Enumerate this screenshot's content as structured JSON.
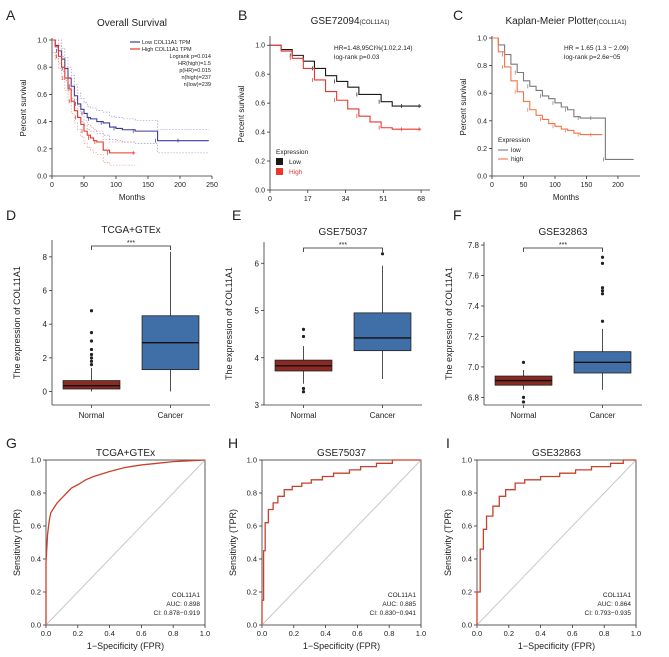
{
  "colors": {
    "blue_curve": "#3b3b9a",
    "red_curve": "#e8372c",
    "black_curve": "#1a1a1a",
    "gray_curve": "#7a7a7a",
    "orange_curve": "#f5734a",
    "normal_box": "#8a2a22",
    "cancer_box": "#3f6fa6",
    "roc_line": "#c8412c",
    "diag": "#c8c8c8"
  },
  "chart_data": [
    {
      "panel": "A",
      "type": "line",
      "title": "Overall Survival",
      "xlabel": "Months",
      "ylabel": "Percent survival",
      "xlim": [
        0,
        250
      ],
      "ylim": [
        0,
        1
      ],
      "xticks": [
        0,
        50,
        100,
        150,
        200,
        250
      ],
      "xticklabels": [
        "0",
        "50",
        "100",
        "150",
        "200",
        "250"
      ],
      "yticks": [
        0,
        0.2,
        0.4,
        0.6,
        0.8,
        1
      ],
      "yticklabels": [
        "0.0",
        "0.2",
        "0.4",
        "0.6",
        "0.8",
        "1.0"
      ],
      "legend": [
        "Low COL11A1 TPM",
        "High COL11A1 TPM"
      ],
      "stats": [
        "Logrank p=0.014",
        "HR(high)=1.5",
        "p(HR)=0.015",
        "n(high)=237",
        "n(low)=239"
      ],
      "series": [
        {
          "name": "Low",
          "color_key": "blue_curve",
          "x": [
            0,
            5,
            10,
            15,
            20,
            25,
            30,
            35,
            40,
            45,
            50,
            55,
            60,
            70,
            80,
            90,
            100,
            110,
            130,
            150,
            165,
            175,
            200,
            245
          ],
          "y": [
            1,
            0.96,
            0.92,
            0.86,
            0.79,
            0.72,
            0.66,
            0.59,
            0.53,
            0.49,
            0.46,
            0.43,
            0.42,
            0.4,
            0.39,
            0.36,
            0.35,
            0.34,
            0.33,
            0.33,
            0.26,
            0.26,
            0.26,
            0.26
          ]
        },
        {
          "name": "High",
          "color_key": "red_curve",
          "x": [
            0,
            5,
            10,
            15,
            20,
            25,
            30,
            35,
            40,
            45,
            50,
            55,
            60,
            65,
            70,
            80,
            90,
            100,
            130
          ],
          "y": [
            1,
            0.95,
            0.88,
            0.8,
            0.72,
            0.64,
            0.55,
            0.48,
            0.43,
            0.38,
            0.33,
            0.3,
            0.28,
            0.26,
            0.25,
            0.19,
            0.17,
            0.17,
            0.17
          ]
        }
      ]
    },
    {
      "panel": "B",
      "type": "line",
      "title": "GSE72094",
      "title_sub": "(COL11A1)",
      "xlabel": "",
      "ylabel": "Percent survival",
      "xlim": [
        0,
        72
      ],
      "ylim": [
        0,
        1.05
      ],
      "xticks": [
        0,
        17,
        34,
        51,
        68
      ],
      "xticklabels": [
        "0",
        "17",
        "34",
        "51",
        "68"
      ],
      "yticks": [
        0,
        0.2,
        0.4,
        0.6,
        0.8,
        1.0
      ],
      "yticklabels": [
        "0.0",
        "0.2",
        "0.4",
        "0.6",
        "0.8",
        "1.0"
      ],
      "legend_title": "Expression",
      "legend": [
        "Low",
        "High"
      ],
      "stats": [
        "HR=1.48,95CI%(1.02,2.14)",
        "log-rank p=0.03"
      ],
      "series": [
        {
          "name": "Low",
          "color_key": "black_curve",
          "x": [
            0,
            5,
            10,
            15,
            20,
            25,
            30,
            35,
            40,
            45,
            50,
            55,
            60,
            65,
            68
          ],
          "y": [
            1,
            0.97,
            0.93,
            0.89,
            0.84,
            0.79,
            0.75,
            0.71,
            0.66,
            0.66,
            0.61,
            0.58,
            0.58,
            0.58,
            0.58
          ]
        },
        {
          "name": "High",
          "color_key": "red_curve",
          "x": [
            0,
            5,
            10,
            15,
            20,
            25,
            30,
            35,
            40,
            45,
            50,
            55,
            60,
            65,
            68
          ],
          "y": [
            1,
            0.96,
            0.91,
            0.84,
            0.76,
            0.68,
            0.62,
            0.56,
            0.51,
            0.47,
            0.43,
            0.42,
            0.42,
            0.42,
            0.42
          ]
        }
      ]
    },
    {
      "panel": "C",
      "type": "line",
      "title": "Kaplan-Meier Plotter",
      "title_sub": "(COL11A1)",
      "xlabel": "Months",
      "ylabel": "Percent survival",
      "xlim": [
        0,
        235
      ],
      "ylim": [
        0,
        1
      ],
      "xticks": [
        0,
        50,
        100,
        150,
        200
      ],
      "xticklabels": [
        "0",
        "50",
        "100",
        "150",
        "200"
      ],
      "yticks": [
        0,
        0.2,
        0.4,
        0.6,
        0.8,
        1
      ],
      "yticklabels": [
        "0.0",
        "0.2",
        "0.4",
        "0.6",
        "0.8",
        "1.0"
      ],
      "legend_title": "Expression",
      "legend": [
        "low",
        "high"
      ],
      "stats": [
        "HR = 1.65 (1.3 − 2.09)",
        "log-rank p=2.6e−05"
      ],
      "series": [
        {
          "name": "low",
          "color_key": "gray_curve",
          "x": [
            0,
            10,
            20,
            30,
            40,
            50,
            60,
            70,
            80,
            90,
            100,
            110,
            120,
            130,
            140,
            150,
            160,
            175,
            180,
            225
          ],
          "y": [
            1,
            0.95,
            0.88,
            0.81,
            0.75,
            0.69,
            0.65,
            0.62,
            0.58,
            0.56,
            0.53,
            0.5,
            0.48,
            0.43,
            0.42,
            0.42,
            0.42,
            0.42,
            0.12,
            0.12
          ]
        },
        {
          "name": "high",
          "color_key": "orange_curve",
          "x": [
            0,
            10,
            20,
            30,
            40,
            50,
            60,
            70,
            80,
            90,
            100,
            110,
            120,
            130,
            140,
            150,
            160,
            175
          ],
          "y": [
            1,
            0.9,
            0.79,
            0.69,
            0.61,
            0.54,
            0.48,
            0.44,
            0.41,
            0.38,
            0.36,
            0.34,
            0.33,
            0.31,
            0.3,
            0.3,
            0.3,
            0.3
          ]
        }
      ]
    },
    {
      "panel": "D",
      "type": "box",
      "title": "TCGA+GTEx",
      "ylabel": "The expression of COL11A1",
      "categories": [
        "Normal",
        "Cancer"
      ],
      "significance": "***",
      "ylim": [
        -0.8,
        9
      ],
      "yticks": [
        0,
        2,
        4,
        6,
        8
      ],
      "yticklabels": [
        "0",
        "2",
        "4",
        "6",
        "8"
      ],
      "boxes": [
        {
          "min": 0.0,
          "q1": 0.15,
          "median": 0.35,
          "q3": 0.65,
          "max": 1.4,
          "outliers": [
            1.6,
            1.8,
            2.0,
            2.2,
            2.5,
            3.0,
            3.5,
            4.8
          ]
        },
        {
          "min": 0.0,
          "q1": 1.3,
          "median": 2.9,
          "q3": 4.5,
          "max": 8.3,
          "outliers": []
        }
      ]
    },
    {
      "panel": "E",
      "type": "box",
      "title": "GSE75037",
      "ylabel": "The expression of COL11A1",
      "categories": [
        "Normal",
        "Cancer"
      ],
      "significance": "***",
      "ylim": [
        3,
        6.45
      ],
      "yticks": [
        3,
        4,
        5,
        6
      ],
      "yticklabels": [
        "3",
        "4",
        "5",
        "6"
      ],
      "boxes": [
        {
          "min": 3.45,
          "q1": 3.72,
          "median": 3.83,
          "q3": 3.95,
          "max": 4.25,
          "outliers": [
            4.6,
            4.45,
            3.35,
            3.28
          ]
        },
        {
          "min": 3.55,
          "q1": 4.15,
          "median": 4.42,
          "q3": 4.95,
          "max": 5.95,
          "outliers": [
            6.2
          ]
        }
      ]
    },
    {
      "panel": "F",
      "type": "box",
      "title": "GSE32863",
      "ylabel": "The expression of COL11A1",
      "categories": [
        "Normal",
        "Cancer"
      ],
      "significance": "***",
      "ylim": [
        6.75,
        7.82
      ],
      "yticks": [
        6.8,
        7.0,
        7.2,
        7.4,
        7.6,
        7.8
      ],
      "yticklabels": [
        "6.8",
        "7.0",
        "7.2",
        "7.4",
        "7.6",
        "7.8"
      ],
      "boxes": [
        {
          "min": 6.85,
          "q1": 6.88,
          "median": 6.91,
          "q3": 6.94,
          "max": 6.98,
          "outliers": [
            7.03,
            6.8,
            6.77
          ]
        },
        {
          "min": 6.85,
          "q1": 6.96,
          "median": 7.03,
          "q3": 7.1,
          "max": 7.25,
          "outliers": [
            7.3,
            7.48,
            7.5,
            7.52,
            7.68,
            7.72
          ]
        }
      ]
    },
    {
      "panel": "G",
      "type": "line",
      "subtype": "roc",
      "title": "TCGA+GTEx",
      "xlabel": "1−Specificity (FPR)",
      "ylabel": "Sensitivity (TPR)",
      "xlim": [
        0,
        1
      ],
      "ylim": [
        0,
        1
      ],
      "xticks": [
        0,
        0.2,
        0.4,
        0.6,
        0.8,
        1.0
      ],
      "xticklabels": [
        "0.0",
        "0.2",
        "0.4",
        "0.6",
        "0.8",
        "1.0"
      ],
      "yticks": [
        0,
        0.2,
        0.4,
        0.6,
        0.8,
        1.0
      ],
      "yticklabels": [
        "0.0",
        "0.2",
        "0.4",
        "0.6",
        "0.8",
        "1.0"
      ],
      "annotation": [
        "COL11A1",
        "AUC: 0.898",
        "CI: 0.878−0.919"
      ],
      "x": [
        0,
        0,
        0.01,
        0.02,
        0.03,
        0.05,
        0.07,
        0.1,
        0.13,
        0.16,
        0.2,
        0.25,
        0.3,
        0.4,
        0.5,
        0.6,
        0.7,
        0.8,
        0.9,
        1.0
      ],
      "y": [
        0,
        0.38,
        0.55,
        0.63,
        0.68,
        0.71,
        0.74,
        0.77,
        0.8,
        0.83,
        0.85,
        0.88,
        0.9,
        0.93,
        0.955,
        0.97,
        0.98,
        0.99,
        0.995,
        1.0
      ]
    },
    {
      "panel": "H",
      "type": "line",
      "subtype": "roc",
      "title": "GSE75037",
      "xlabel": "1−Specificity (FPR)",
      "ylabel": "Sensitivity (TPR)",
      "xlim": [
        0,
        1
      ],
      "ylim": [
        0,
        1
      ],
      "xticks": [
        0,
        0.2,
        0.4,
        0.6,
        0.8,
        1.0
      ],
      "xticklabels": [
        "0.0",
        "0.2",
        "0.4",
        "0.6",
        "0.8",
        "1.0"
      ],
      "yticks": [
        0,
        0.2,
        0.4,
        0.6,
        0.8,
        1.0
      ],
      "yticklabels": [
        "0.0",
        "0.2",
        "0.4",
        "0.6",
        "0.8",
        "1.0"
      ],
      "annotation": [
        "COL11A1",
        "AUC: 0.885",
        "CI: 0.830−0.941"
      ],
      "x": [
        0,
        0,
        0.01,
        0.01,
        0.02,
        0.02,
        0.04,
        0.04,
        0.07,
        0.07,
        0.1,
        0.1,
        0.14,
        0.14,
        0.19,
        0.19,
        0.25,
        0.25,
        0.31,
        0.31,
        0.38,
        0.38,
        0.45,
        0.45,
        0.55,
        0.55,
        0.62,
        0.62,
        0.72,
        0.72,
        0.82,
        0.82,
        1.0
      ],
      "y": [
        0,
        0.15,
        0.15,
        0.45,
        0.45,
        0.62,
        0.62,
        0.7,
        0.7,
        0.74,
        0.74,
        0.78,
        0.78,
        0.82,
        0.82,
        0.84,
        0.84,
        0.86,
        0.86,
        0.88,
        0.88,
        0.9,
        0.9,
        0.92,
        0.92,
        0.94,
        0.94,
        0.96,
        0.96,
        0.98,
        0.98,
        1.0,
        1.0
      ]
    },
    {
      "panel": "I",
      "type": "line",
      "subtype": "roc",
      "title": "GSE32863",
      "xlabel": "1−Specificity (FPR)",
      "ylabel": "Sensitivity (TPR)",
      "xlim": [
        0,
        1
      ],
      "ylim": [
        0,
        1
      ],
      "xticks": [
        0,
        0.2,
        0.4,
        0.6,
        0.8,
        1.0
      ],
      "xticklabels": [
        "0.0",
        "0.2",
        "0.4",
        "0.6",
        "0.8",
        "1.0"
      ],
      "yticks": [
        0,
        0.2,
        0.4,
        0.6,
        0.8,
        1.0
      ],
      "yticklabels": [
        "0.0",
        "0.2",
        "0.4",
        "0.6",
        "0.8",
        "1.0"
      ],
      "annotation": [
        "COL11A1",
        "AUC: 0.864",
        "CI: 0.793−0.935"
      ],
      "x": [
        0,
        0,
        0.02,
        0.02,
        0.04,
        0.04,
        0.06,
        0.06,
        0.1,
        0.1,
        0.14,
        0.14,
        0.18,
        0.18,
        0.24,
        0.24,
        0.3,
        0.3,
        0.4,
        0.4,
        0.52,
        0.52,
        0.62,
        0.62,
        0.72,
        0.72,
        0.84,
        0.84,
        0.92,
        0.92,
        1.0
      ],
      "y": [
        0,
        0.2,
        0.2,
        0.46,
        0.46,
        0.58,
        0.58,
        0.66,
        0.66,
        0.72,
        0.72,
        0.78,
        0.78,
        0.82,
        0.82,
        0.86,
        0.86,
        0.88,
        0.88,
        0.9,
        0.9,
        0.92,
        0.92,
        0.94,
        0.94,
        0.96,
        0.96,
        0.98,
        0.98,
        1.0,
        1.0
      ]
    }
  ]
}
